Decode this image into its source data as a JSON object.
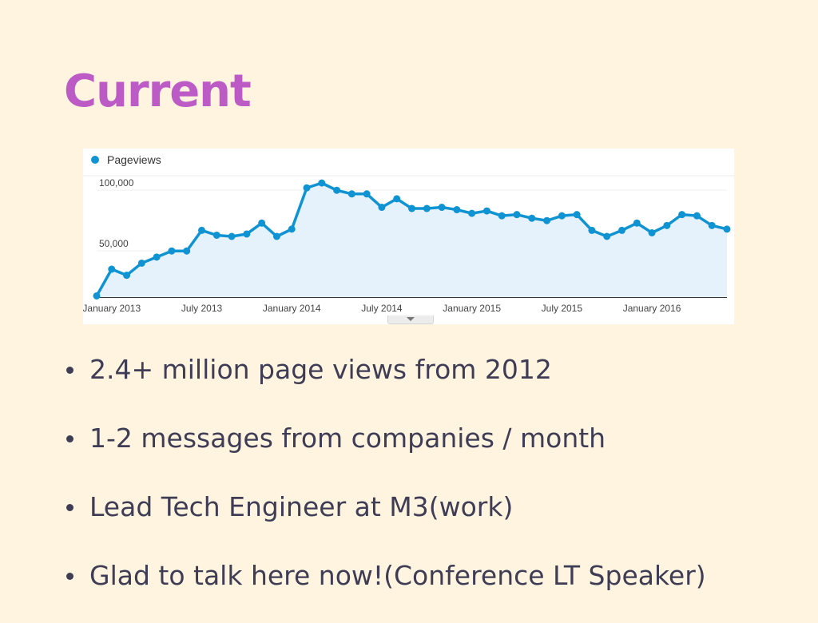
{
  "slide": {
    "title": "Current",
    "bullets": [
      "2.4+ million page views from 2012",
      "1-2 messages from companies / month",
      "Lead Tech Engineer at M3(work)",
      "Glad to talk here now!(Conference LT Speaker)"
    ]
  },
  "colors": {
    "background": "#fef4e0",
    "title": "#bd5bc6",
    "text": "#3f3d55",
    "series_line": "#0f93d2",
    "series_fill": "#e6f2fb"
  },
  "chart_data": {
    "type": "area",
    "title": "",
    "xlabel": "",
    "ylabel": "",
    "legend": [
      "Pageviews"
    ],
    "legend_position": "top-left",
    "grid": true,
    "ylim": [
      0,
      100000
    ],
    "yticks": [
      {
        "value": 100000,
        "label": "100,000"
      },
      {
        "value": 50000,
        "label": "50,000"
      }
    ],
    "xticks": [
      {
        "index": 1,
        "label": "January 2013"
      },
      {
        "index": 7,
        "label": "July 2013"
      },
      {
        "index": 13,
        "label": "January 2014"
      },
      {
        "index": 19,
        "label": "July 2014"
      },
      {
        "index": 25,
        "label": "January 2015"
      },
      {
        "index": 31,
        "label": "July 2015"
      },
      {
        "index": 37,
        "label": "January 2016"
      }
    ],
    "series": [
      {
        "name": "Pageviews",
        "values": [
          1000,
          23000,
          18000,
          28000,
          33000,
          38000,
          38000,
          55000,
          51000,
          50000,
          52000,
          61000,
          50000,
          56000,
          90000,
          94000,
          88000,
          85000,
          85000,
          74000,
          81000,
          73000,
          73000,
          74000,
          72000,
          69000,
          71000,
          67000,
          68000,
          65000,
          63000,
          67000,
          68000,
          55000,
          50000,
          55000,
          61000,
          53000,
          59000,
          68000,
          67000,
          59000,
          56000
        ]
      }
    ]
  }
}
